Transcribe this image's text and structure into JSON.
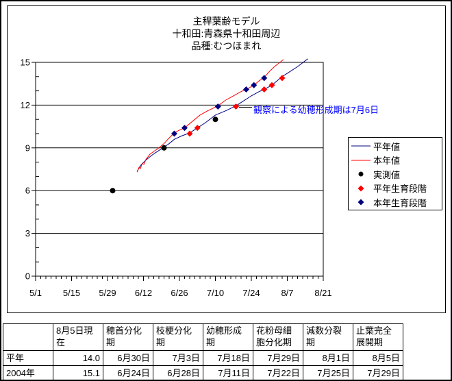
{
  "chart_data": {
    "type": "line",
    "title_lines": [
      "主稈葉齢モデル",
      "十和田:青森県十和田周辺",
      "品種:むつほまれ"
    ],
    "title": "主稈葉齢モデル 十和田:青森県十和田周辺 品種:むつほまれ",
    "xlabel": "",
    "ylabel": "",
    "x_unit": "date (x expressed as days since 5/1 when numeric)",
    "x_tick_labels": [
      "5/1",
      "5/15",
      "5/29",
      "6/12",
      "6/26",
      "7/10",
      "7/24",
      "8/7",
      "8/21"
    ],
    "x_major_tick_interval_days": 14,
    "x_minor_tick_interval_days": 2,
    "y_ticks": [
      0,
      3,
      6,
      9,
      12,
      15
    ],
    "y_minor_tick": 1,
    "ylim": [
      0,
      15
    ],
    "grid": "horizontal major gridlines",
    "legend_position": "right",
    "series": [
      {
        "name": "平年値",
        "kind": "line",
        "color": "#000080",
        "points": [
          [
            39.5,
            7.35
          ],
          [
            41,
            7.8
          ],
          [
            43,
            8.15
          ],
          [
            45,
            8.45
          ],
          [
            47,
            8.7
          ],
          [
            50,
            9.05
          ],
          [
            52,
            9.3
          ],
          [
            54,
            9.6
          ],
          [
            57,
            9.85
          ],
          [
            60,
            10.05
          ],
          [
            63,
            10.4
          ],
          [
            66,
            10.75
          ],
          [
            70,
            11.3
          ],
          [
            74,
            11.6
          ],
          [
            78,
            11.95
          ],
          [
            81,
            12.3
          ],
          [
            84,
            12.65
          ],
          [
            87,
            12.95
          ],
          [
            89,
            13.1
          ],
          [
            92,
            13.4
          ],
          [
            96,
            14.0
          ],
          [
            99,
            14.35
          ],
          [
            102,
            14.7
          ],
          [
            106,
            15.25
          ]
        ]
      },
      {
        "name": "本年値",
        "kind": "line",
        "color": "#ff0000",
        "points": [
          [
            39.5,
            7.3
          ],
          [
            40.3,
            7.65
          ],
          [
            40.8,
            7.55
          ],
          [
            41.5,
            7.9
          ],
          [
            42.2,
            7.85
          ],
          [
            43,
            8.2
          ],
          [
            44.5,
            8.55
          ],
          [
            46,
            8.75
          ],
          [
            48,
            9.0
          ],
          [
            50,
            9.3
          ],
          [
            52,
            9.7
          ],
          [
            54,
            10.05
          ],
          [
            56,
            10.25
          ],
          [
            58,
            10.4
          ],
          [
            61,
            10.85
          ],
          [
            64,
            11.3
          ],
          [
            67,
            11.6
          ],
          [
            71,
            11.95
          ],
          [
            74,
            12.35
          ],
          [
            77,
            12.65
          ],
          [
            80,
            12.95
          ],
          [
            82,
            13.1
          ],
          [
            85,
            13.4
          ],
          [
            87,
            13.7
          ],
          [
            89,
            13.95
          ],
          [
            91,
            14.35
          ],
          [
            93,
            14.7
          ],
          [
            96.5,
            15.2
          ]
        ]
      },
      {
        "name": "実測値",
        "kind": "scatter",
        "marker": "dot",
        "color": "#000000",
        "points": [
          [
            "5/31",
            6.0
          ],
          [
            "6/20",
            9.0
          ],
          [
            "7/10",
            11.0
          ]
        ]
      },
      {
        "name": "平年生育段階",
        "kind": "scatter",
        "marker": "diamond",
        "color": "#ff0000",
        "points": [
          [
            "6/30",
            10.0
          ],
          [
            "7/3",
            10.4
          ],
          [
            "7/18",
            11.9
          ],
          [
            "7/29",
            13.1
          ],
          [
            "8/1",
            13.4
          ],
          [
            "8/5",
            13.9
          ]
        ]
      },
      {
        "name": "本年生育段階",
        "kind": "scatter",
        "marker": "diamond",
        "color": "#000080",
        "points": [
          [
            "6/24",
            10.0
          ],
          [
            "6/28",
            10.4
          ],
          [
            "7/11",
            11.9
          ],
          [
            "7/22",
            13.1
          ],
          [
            "7/25",
            13.4
          ],
          [
            "7/29",
            13.9
          ]
        ]
      }
    ],
    "annotation": {
      "text": "観察による幼穂形成期は7月6日",
      "color": "#0000ff",
      "points_to": "平年生育段階 7/18 12葉 marker"
    }
  },
  "table": {
    "headers": [
      "",
      "8月5日現在",
      "穂首分化期",
      "枝梗分化期",
      "幼穂形成期",
      "花粉母細胞分化期",
      "減数分裂期",
      "止葉完全展開期"
    ],
    "rows": [
      {
        "label": "平年",
        "values": [
          "14.0",
          "6月30日",
          "7月3日",
          "7月18日",
          "7月29日",
          "8月1日",
          "8月5日"
        ]
      },
      {
        "label": "2004年",
        "values": [
          "15.1",
          "6月24日",
          "6月28日",
          "7月11日",
          "7月22日",
          "7月25日",
          "7月29日"
        ]
      }
    ]
  }
}
